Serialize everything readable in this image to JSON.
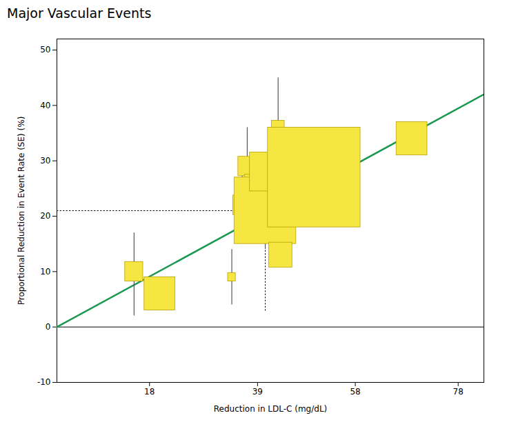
{
  "chart_data": {
    "type": "scatter",
    "title": "Major Vascular Events",
    "xlabel": "Reduction in LDL-C (mg/dL)",
    "ylabel": "Proportional Reduction in Event Rate (SE) (%)",
    "xlim": [
      0,
      83
    ],
    "ylim": [
      -10,
      52
    ],
    "xticks": [
      18,
      39,
      58,
      78
    ],
    "yticks": [
      -10,
      0,
      10,
      20,
      30,
      40,
      50
    ],
    "series": [
      {
        "type": "line",
        "color": "#1a9850",
        "x": [
          0,
          83
        ],
        "values": [
          0,
          42.0
        ]
      },
      {
        "type": "line",
        "line_style": "dotted",
        "color": "#000000",
        "x": [
          0,
          40.5
        ],
        "values": [
          21,
          21
        ]
      },
      {
        "type": "line",
        "line_style": "dotted",
        "color": "#000000",
        "x": [
          40.5,
          40.5
        ],
        "values": [
          3,
          21
        ]
      },
      {
        "type": "scatter",
        "marker": "square",
        "color": "#f5e642",
        "x": [
          15,
          20,
          34,
          36,
          37,
          39,
          40,
          40.5,
          41,
          43,
          43.5,
          50,
          69
        ],
        "values": [
          10,
          6,
          9,
          22,
          29,
          22,
          24,
          21,
          28,
          36,
          13,
          27,
          34
        ],
        "yerr_lo": [
          8,
          2,
          5,
          4,
          7,
          3,
          2,
          7,
          2,
          8,
          2,
          2,
          3
        ],
        "yerr_hi": [
          7,
          2,
          5,
          7,
          7,
          2,
          2,
          7,
          2,
          9,
          2,
          2,
          3
        ],
        "size": [
          3.5,
          6.0,
          1.5,
          3.5,
          3.5,
          4.5,
          7.0,
          12.0,
          7.0,
          2.5,
          4.5,
          18.0,
          6.0
        ]
      }
    ]
  }
}
